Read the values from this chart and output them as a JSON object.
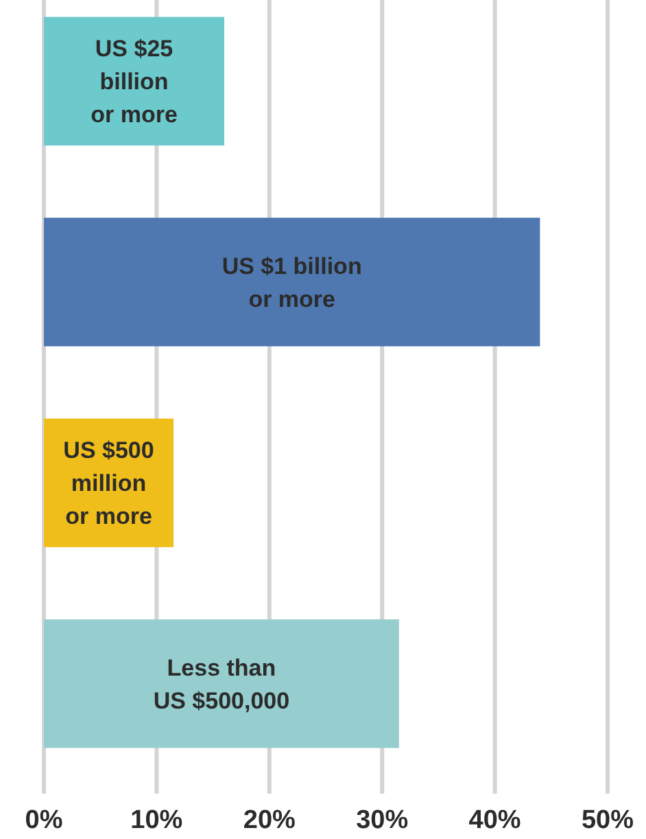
{
  "chart_data": {
    "type": "bar",
    "orientation": "horizontal",
    "categories": [
      "US $25 billion or more",
      "US $1 billion or more",
      "US $500 million or more",
      "Less than US $500,000"
    ],
    "values": [
      16,
      44,
      11.5,
      31.5
    ],
    "colors": [
      "#6cc9cc",
      "#4f78b0",
      "#f0be1a",
      "#96cdce"
    ],
    "xlim": [
      0,
      50
    ],
    "xticks": [
      {
        "value": 0,
        "label": "0%"
      },
      {
        "value": 10,
        "label": "10%"
      },
      {
        "value": 20,
        "label": "20%"
      },
      {
        "value": 30,
        "label": "30%"
      },
      {
        "value": 40,
        "label": "40%"
      },
      {
        "value": 50,
        "label": "50%"
      }
    ],
    "grid": "x"
  }
}
